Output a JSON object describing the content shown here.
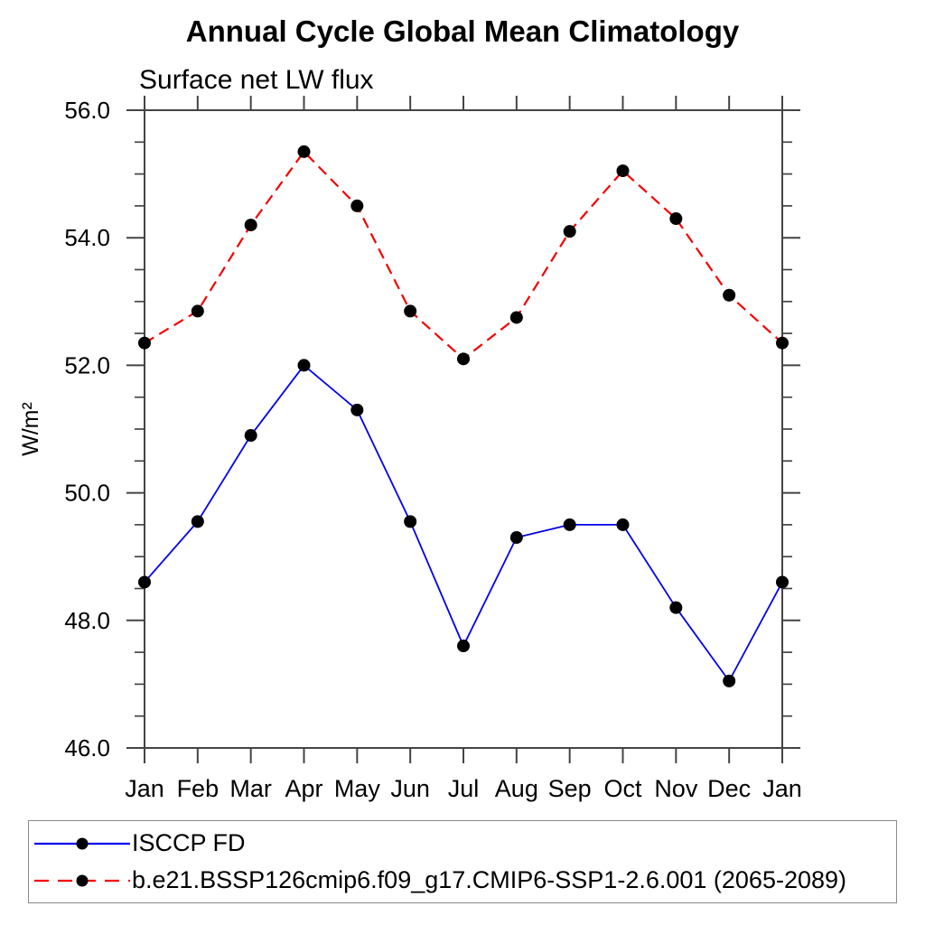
{
  "chart_data": {
    "type": "line",
    "title": "Annual Cycle Global Mean Climatology",
    "subtitle": "Surface net LW flux",
    "ylabel": "W/m²",
    "xlabel": "",
    "categories": [
      "Jan",
      "Feb",
      "Mar",
      "Apr",
      "May",
      "Jun",
      "Jul",
      "Aug",
      "Sep",
      "Oct",
      "Nov",
      "Dec",
      "Jan"
    ],
    "series": [
      {
        "name": "ISCCP FD",
        "color": "#0000ee",
        "line_style": "solid",
        "marker": "filled-circle",
        "marker_color": "#000000",
        "values": [
          48.6,
          49.55,
          50.9,
          52.0,
          51.3,
          49.55,
          47.6,
          49.3,
          49.5,
          49.5,
          48.2,
          47.05,
          48.6
        ]
      },
      {
        "name": "b.e21.BSSP126cmip6.f09_g17.CMIP6-SSP1-2.6.001 (2065-2089)",
        "color": "#f40000",
        "line_style": "dashed",
        "marker": "filled-circle",
        "marker_color": "#000000",
        "values": [
          52.35,
          52.85,
          54.2,
          55.35,
          54.5,
          52.85,
          52.1,
          52.75,
          54.1,
          55.05,
          54.3,
          53.1,
          52.35
        ]
      }
    ],
    "ylim": [
      46.0,
      56.0
    ],
    "ytick_values": [
      46,
      48,
      50,
      52,
      54,
      56
    ],
    "ytick_labels": [
      "46.0",
      "48.0",
      "50.0",
      "52.0",
      "54.0",
      "56.0"
    ],
    "minor_tick_interval": 0.5,
    "grid": false,
    "axis_color": "#444444",
    "legend_position": "bottom-left-box"
  }
}
